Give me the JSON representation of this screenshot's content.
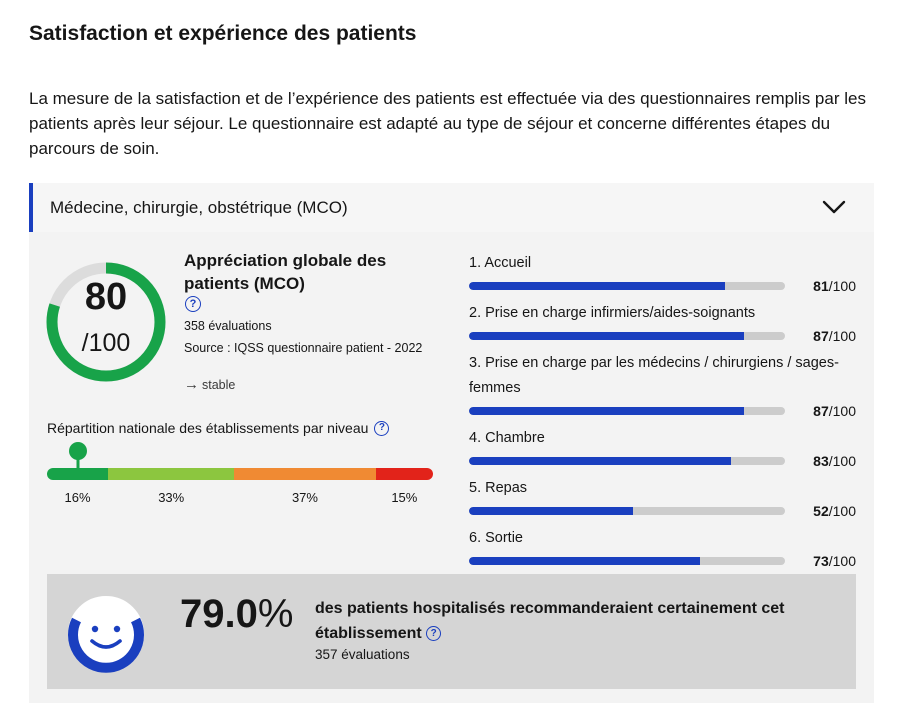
{
  "page": {
    "title": "Satisfaction et expérience des patients",
    "intro": "La mesure de la satisfaction et de l’expérience des patients est effectuée via des questionnaires remplis par les patients après leur séjour. Le questionnaire est adapté au type de séjour et concerne différentes étapes du parcours de soin."
  },
  "accordion": {
    "title": "Médecine, chirurgie, obstétrique (MCO)",
    "icon": "chevron-down-icon"
  },
  "global": {
    "score": "80",
    "score_max": "/100",
    "score_value": 80,
    "ring_color": "#18a349",
    "title": "Appréciation globale des patients (MCO)",
    "help_icon": "question-circle-icon",
    "help_glyph": "?",
    "evaluations": "358 évaluations",
    "source": "Source : IQSS questionnaire patient - 2022",
    "trend_arrow": "→",
    "trend": "stable"
  },
  "repartition": {
    "label": "Répartition nationale des établissements par niveau",
    "help_glyph": "?",
    "segments": [
      {
        "percent": "16%",
        "value": 16,
        "color": "#18a349"
      },
      {
        "percent": "33%",
        "value": 33,
        "color": "#8cc63f"
      },
      {
        "percent": "37%",
        "value": 37,
        "color": "#f08a33"
      },
      {
        "percent": "15%",
        "value": 15,
        "color": "#e2231a"
      }
    ]
  },
  "criteria": [
    {
      "label": "1. Accueil",
      "score": "81",
      "max": "/100",
      "value": 81
    },
    {
      "label": "2. Prise en charge infirmiers/aides-soignants",
      "score": "87",
      "max": "/100",
      "value": 87
    },
    {
      "label": "3. Prise en charge par les médecins / chirurgiens / sages-femmes",
      "score": "87",
      "max": "/100",
      "value": 87
    },
    {
      "label": "4. Chambre",
      "score": "83",
      "max": "/100",
      "value": 83
    },
    {
      "label": "5. Repas",
      "score": "52",
      "max": "/100",
      "value": 52
    },
    {
      "label": "6. Sortie",
      "score": "73",
      "max": "/100",
      "value": 73
    }
  ],
  "recommendation": {
    "icon": "smiley-face-icon",
    "percent_number": "79.0",
    "percent_sign": "%",
    "text": "des patients hospitalisés recommanderaient certainement cet établissement",
    "help_glyph": "?",
    "evaluations": "357 évaluations",
    "value": 79.0,
    "color": "#1a3fbf"
  }
}
